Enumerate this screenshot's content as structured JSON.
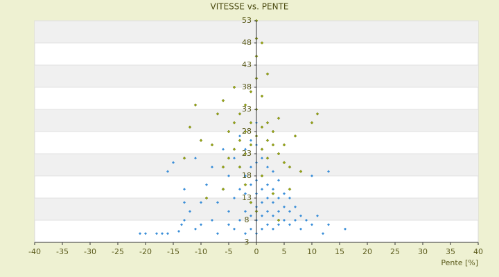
{
  "chart_data": {
    "type": "scatter",
    "title": "VITESSE vs. PENTE",
    "x_label": "Pente [%]",
    "xlim": [
      -40,
      40
    ],
    "xticks": [
      -40,
      -35,
      -30,
      -25,
      -20,
      -15,
      -10,
      -5,
      0,
      5,
      10,
      15,
      20,
      25,
      30,
      35,
      40
    ],
    "ylim": [
      3,
      53
    ],
    "yticks": [
      3,
      8,
      13,
      18,
      23,
      28,
      33,
      38,
      43,
      48,
      53
    ],
    "banded_background": true,
    "series": [
      {
        "color": "#3a8ed8",
        "x": [
          -21,
          -20,
          -18,
          -17,
          -16,
          -14,
          -13.5,
          -13,
          -13,
          -12,
          -11,
          -10,
          -10,
          -9,
          -8,
          -8,
          -7,
          -7,
          -6,
          -6,
          -5,
          -5,
          -5,
          -4,
          -4,
          -4,
          -3,
          -3,
          -3,
          -3,
          -2,
          -2,
          -2,
          -2,
          -2,
          -1,
          -1,
          -1,
          -1,
          -1,
          -1,
          0,
          0,
          0,
          0,
          0,
          0,
          0,
          0,
          1,
          1,
          1,
          1,
          1,
          1,
          2,
          2,
          2,
          2,
          2,
          3,
          3,
          3,
          3,
          3,
          4,
          4,
          4,
          4,
          5,
          5,
          5,
          6,
          6,
          6,
          7,
          7,
          8,
          8,
          9,
          10,
          10,
          11,
          12,
          13,
          13,
          16,
          -15,
          -16,
          -11,
          -13
        ],
        "values": [
          5,
          5,
          5,
          5,
          5,
          5.5,
          7,
          8,
          12,
          10,
          6,
          7,
          12,
          16,
          8,
          20,
          5,
          12,
          15,
          24,
          7,
          10,
          18,
          6,
          13,
          22,
          8,
          15,
          20,
          27,
          5,
          10,
          14,
          18,
          24,
          6,
          9,
          12,
          16,
          20,
          26,
          5,
          8,
          11,
          14,
          17,
          21,
          25,
          30,
          6,
          9,
          12,
          15,
          18,
          22,
          7,
          10,
          13,
          16,
          20,
          6,
          9,
          12,
          15,
          19,
          7,
          10,
          13,
          17,
          8,
          11,
          14,
          7,
          10,
          13,
          8,
          11,
          6,
          9,
          8,
          7,
          18,
          9,
          5,
          19,
          7,
          6,
          21,
          19,
          22,
          15
        ]
      },
      {
        "color": "#9aa812",
        "x": [
          -12,
          -11,
          -13,
          -10,
          -8,
          -7,
          -6,
          -6,
          -5,
          -5,
          -4,
          -4,
          -4,
          -3,
          -3,
          -3,
          -2,
          -2,
          -2,
          -1,
          -1,
          -1,
          0,
          0,
          0,
          0,
          0,
          0,
          1,
          1,
          1,
          1,
          2,
          2,
          2,
          2,
          3,
          3,
          4,
          4,
          5,
          5,
          6,
          7,
          8,
          10,
          11,
          -9,
          -2,
          1,
          3,
          4,
          -1,
          -6,
          0,
          6
        ],
        "values": [
          29,
          34,
          22,
          26,
          25,
          32,
          35,
          20,
          28,
          22,
          30,
          24,
          38,
          26,
          32,
          20,
          28,
          34,
          23,
          30,
          25,
          37,
          27,
          33,
          40,
          45,
          49,
          53,
          29,
          24,
          36,
          48,
          26,
          30,
          41,
          22,
          25,
          28,
          23,
          31,
          21,
          25,
          20,
          27,
          19,
          30,
          32,
          13,
          16,
          18,
          14,
          8,
          12,
          15,
          10,
          15
        ]
      }
    ]
  }
}
